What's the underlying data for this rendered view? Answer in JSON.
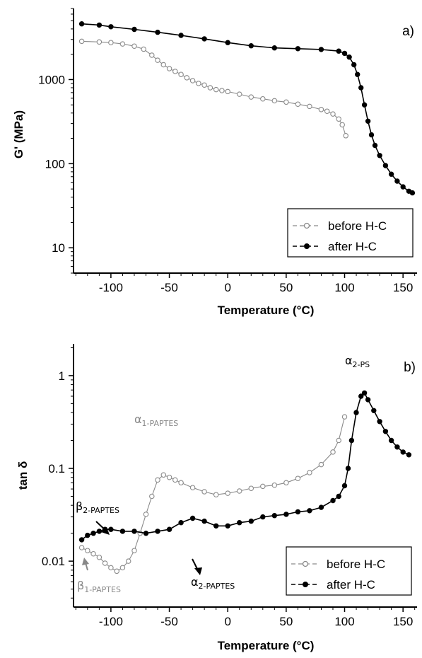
{
  "chart_data": [
    {
      "type": "scatter",
      "panel_label": "a)",
      "xlabel": "Temperature (°C)",
      "ylabel": "G' (MPa)",
      "yscale": "log",
      "xlim": [
        -132,
        162
      ],
      "ylim": [
        5,
        7000
      ],
      "xticks": [
        -100,
        -50,
        0,
        50,
        100,
        150
      ],
      "xtick_labels": [
        "-100",
        "-50",
        "0",
        "50",
        "100",
        "150"
      ],
      "yticks": [
        10,
        100,
        1000
      ],
      "ytick_labels": [
        "10",
        "100",
        "1000"
      ],
      "legend": {
        "position": "bottom-right",
        "entries": [
          "before H-C",
          "after H-C"
        ]
      },
      "series": [
        {
          "name": "before H-C",
          "marker": "open-circle",
          "color": "#8a8a8a",
          "x": [
            -125,
            -110,
            -100,
            -90,
            -80,
            -72,
            -65,
            -60,
            -55,
            -50,
            -45,
            -40,
            -35,
            -30,
            -25,
            -20,
            -15,
            -10,
            -5,
            0,
            10,
            20,
            30,
            40,
            50,
            60,
            70,
            80,
            85,
            90,
            95,
            98,
            101
          ],
          "y": [
            2850,
            2800,
            2750,
            2650,
            2500,
            2300,
            1950,
            1700,
            1500,
            1350,
            1250,
            1150,
            1050,
            970,
            900,
            860,
            800,
            760,
            740,
            720,
            670,
            620,
            590,
            560,
            540,
            510,
            480,
            440,
            420,
            390,
            340,
            290,
            215
          ]
        },
        {
          "name": "after H-C",
          "marker": "filled-circle",
          "color": "#000000",
          "x": [
            -125,
            -110,
            -100,
            -80,
            -60,
            -40,
            -20,
            0,
            20,
            40,
            60,
            80,
            95,
            100,
            104,
            108,
            111,
            114,
            117,
            120,
            123,
            126,
            130,
            135,
            140,
            145,
            150,
            155,
            158
          ],
          "y": [
            4600,
            4450,
            4250,
            3950,
            3650,
            3350,
            3050,
            2750,
            2520,
            2380,
            2330,
            2280,
            2180,
            2050,
            1850,
            1500,
            1150,
            800,
            500,
            320,
            220,
            165,
            125,
            95,
            75,
            62,
            53,
            47,
            45
          ]
        }
      ]
    },
    {
      "type": "scatter",
      "panel_label": "b)",
      "xlabel": "Temperature (°C)",
      "ylabel": "tan δ",
      "yscale": "log",
      "xlim": [
        -132,
        162
      ],
      "ylim": [
        0.0032,
        2.2
      ],
      "xticks": [
        -100,
        -50,
        0,
        50,
        100,
        150
      ],
      "xtick_labels": [
        "-100",
        "-50",
        "0",
        "50",
        "100",
        "150"
      ],
      "yticks": [
        0.01,
        0.1,
        1
      ],
      "ytick_labels": [
        "0.01",
        "0.1",
        "1"
      ],
      "legend": {
        "position": "bottom-right",
        "entries": [
          "before H-C",
          "after H-C"
        ]
      },
      "annotations": [
        {
          "main": "α",
          "sub": "2-PS",
          "x": 115,
          "y": 0.85
        },
        {
          "main": "α",
          "sub": "1-PAPTES",
          "x": -60,
          "y": 0.12
        },
        {
          "main": "β",
          "sub": "2-PAPTES",
          "x": -110,
          "y": 0.028
        },
        {
          "main": "α",
          "sub": "2-PAPTES",
          "x": -25,
          "y": 0.01
        },
        {
          "main": "β",
          "sub": "1-PAPTES",
          "x": -115,
          "y": 0.005
        }
      ],
      "series": [
        {
          "name": "before H-C",
          "marker": "open-circle",
          "color": "#8a8a8a",
          "x": [
            -125,
            -120,
            -115,
            -110,
            -105,
            -100,
            -95,
            -90,
            -85,
            -80,
            -75,
            -70,
            -65,
            -60,
            -55,
            -50,
            -45,
            -40,
            -30,
            -20,
            -10,
            0,
            10,
            20,
            30,
            40,
            50,
            60,
            70,
            80,
            90,
            95,
            100
          ],
          "y": [
            0.014,
            0.013,
            0.012,
            0.011,
            0.0095,
            0.0085,
            0.0078,
            0.0085,
            0.01,
            0.013,
            0.02,
            0.032,
            0.05,
            0.075,
            0.085,
            0.08,
            0.075,
            0.07,
            0.062,
            0.056,
            0.052,
            0.054,
            0.057,
            0.061,
            0.064,
            0.066,
            0.07,
            0.078,
            0.09,
            0.11,
            0.15,
            0.2,
            0.36
          ]
        },
        {
          "name": "after H-C",
          "marker": "filled-circle",
          "color": "#000000",
          "x": [
            -125,
            -120,
            -115,
            -110,
            -105,
            -100,
            -90,
            -80,
            -70,
            -60,
            -50,
            -40,
            -30,
            -20,
            -10,
            0,
            10,
            20,
            30,
            40,
            50,
            60,
            70,
            80,
            90,
            95,
            100,
            103,
            106,
            110,
            114,
            117,
            120,
            125,
            130,
            135,
            140,
            145,
            150,
            155
          ],
          "y": [
            0.017,
            0.019,
            0.02,
            0.021,
            0.022,
            0.022,
            0.021,
            0.021,
            0.02,
            0.021,
            0.022,
            0.026,
            0.029,
            0.027,
            0.024,
            0.024,
            0.026,
            0.027,
            0.03,
            0.031,
            0.032,
            0.034,
            0.035,
            0.038,
            0.045,
            0.05,
            0.065,
            0.1,
            0.2,
            0.4,
            0.6,
            0.65,
            0.55,
            0.42,
            0.32,
            0.25,
            0.2,
            0.17,
            0.15,
            0.14
          ]
        }
      ]
    }
  ]
}
